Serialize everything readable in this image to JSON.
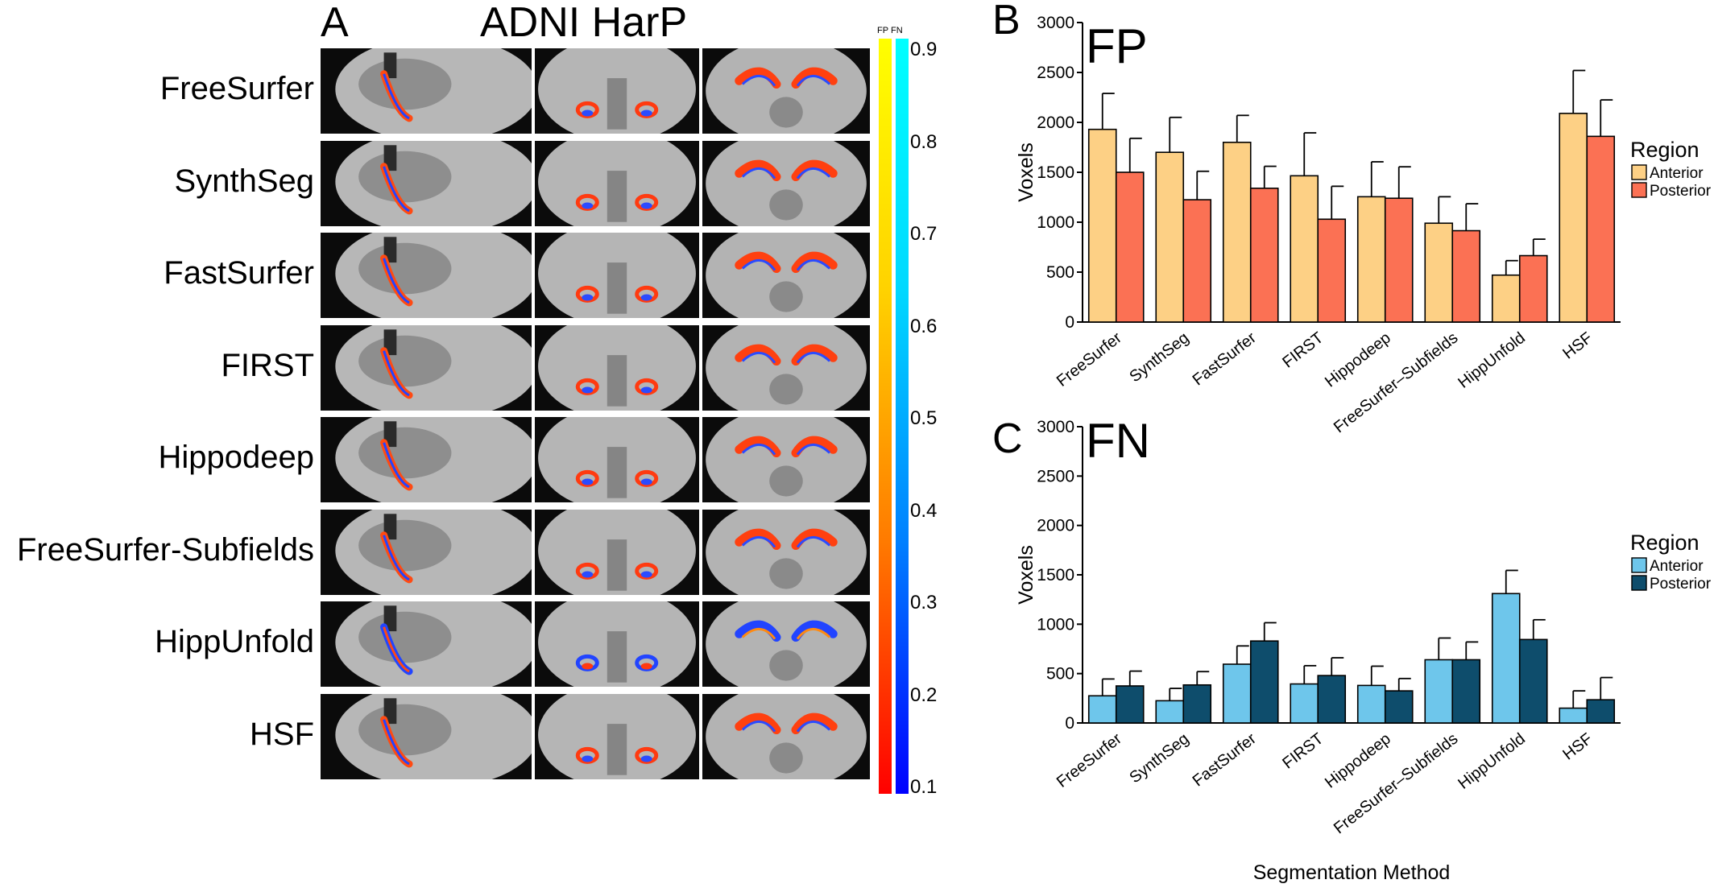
{
  "panel_a": {
    "letter": "A",
    "title": "ADNI HarP",
    "methods": [
      "FreeSurfer",
      "SynthSeg",
      "FastSurfer",
      "FIRST",
      "Hippodeep",
      "FreeSurfer-Subfields",
      "HippUnfold",
      "HSF"
    ],
    "colorbar": {
      "labels": [
        "FP",
        "FN"
      ],
      "ticks": [
        "0.9",
        "0.8",
        "0.7",
        "0.6",
        "0.5",
        "0.4",
        "0.3",
        "0.2",
        "0.1"
      ],
      "fp_colors": [
        "#ff0000",
        "#ff7a00",
        "#ffd200",
        "#ffff00"
      ],
      "fn_colors": [
        "#0000ff",
        "#0080ff",
        "#00d8ff",
        "#00ffff"
      ]
    }
  },
  "chart_data": [
    {
      "type": "bar",
      "panel": "B",
      "title": "FP",
      "xlabel": "",
      "ylabel": "Voxels",
      "ylim": [
        0,
        3000
      ],
      "yticks": [
        "0",
        "500",
        "1000",
        "1500",
        "2000",
        "2500",
        "3000"
      ],
      "categories": [
        "FreeSurfer",
        "SynthSeg",
        "FastSurfer",
        "FIRST",
        "Hippodeep",
        "FreeSurfer–Subfields",
        "HippUnfold",
        "HSF"
      ],
      "legend": {
        "title": "Region",
        "position": "right"
      },
      "series": [
        {
          "name": "Anterior",
          "color": "#fdd085",
          "values": [
            1930,
            1700,
            1800,
            1465,
            1255,
            990,
            470,
            2090
          ],
          "errors": [
            360,
            350,
            270,
            430,
            350,
            265,
            145,
            430
          ]
        },
        {
          "name": "Posterior",
          "color": "#fb7154",
          "values": [
            1500,
            1225,
            1340,
            1030,
            1240,
            915,
            665,
            1860
          ],
          "errors": [
            340,
            285,
            220,
            330,
            315,
            270,
            165,
            365
          ]
        }
      ]
    },
    {
      "type": "bar",
      "panel": "C",
      "title": "FN",
      "xlabel": "Segmentation Method",
      "ylabel": "Voxels",
      "ylim": [
        0,
        3000
      ],
      "yticks": [
        "0",
        "500",
        "1000",
        "1500",
        "2000",
        "2500",
        "3000"
      ],
      "categories": [
        "FreeSurfer",
        "SynthSeg",
        "FastSurfer",
        "FIRST",
        "Hippodeep",
        "FreeSurfer–Subfields",
        "HippUnfold",
        "HSF"
      ],
      "legend": {
        "title": "Region",
        "position": "right"
      },
      "series": [
        {
          "name": "Anterior",
          "color": "#6ec6eb",
          "values": [
            275,
            225,
            595,
            395,
            380,
            640,
            1310,
            150
          ],
          "errors": [
            170,
            125,
            185,
            185,
            195,
            220,
            235,
            175
          ]
        },
        {
          "name": "Posterior",
          "color": "#0e4d6c",
          "values": [
            375,
            385,
            830,
            480,
            325,
            640,
            845,
            235
          ],
          "errors": [
            150,
            135,
            185,
            180,
            125,
            180,
            200,
            225
          ]
        }
      ]
    }
  ]
}
